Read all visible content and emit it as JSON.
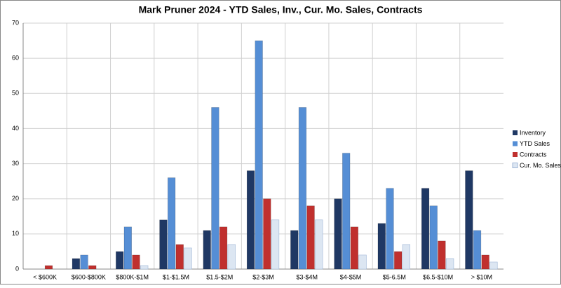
{
  "chart_data": {
    "type": "bar",
    "title": "Mark Pruner 2024 - YTD Sales, Inv., Cur. Mo. Sales, Contracts",
    "categories": [
      "< $600K",
      "$600-$800K",
      "$800K-$1M",
      "$1-$1.5M",
      "$1.5-$2M",
      "$2-$3M",
      "$3-$4M",
      "$4-$5M",
      "$5-6.5M",
      "$6.5-$10M",
      "> $10M"
    ],
    "series": [
      {
        "name": "Inventory",
        "color": "#1f3864",
        "values": [
          0,
          3,
          5,
          14,
          11,
          28,
          11,
          20,
          13,
          23,
          28
        ]
      },
      {
        "name": "YTD Sales",
        "color": "#558ed5",
        "values": [
          0,
          4,
          12,
          26,
          46,
          65,
          46,
          33,
          23,
          18,
          11
        ]
      },
      {
        "name": "Contracts",
        "color": "#c0302e",
        "values": [
          1,
          1,
          4,
          7,
          12,
          20,
          18,
          12,
          5,
          8,
          4
        ]
      },
      {
        "name": "Cur. Mo. Sales",
        "color": "#dce6f2",
        "values": [
          0,
          0,
          1,
          6,
          7,
          14,
          14,
          4,
          7,
          3,
          2
        ]
      }
    ],
    "ylim": [
      0,
      70
    ],
    "yticks": [
      0,
      10,
      20,
      30,
      40,
      50,
      60,
      70
    ],
    "grid": true,
    "legend": "right"
  }
}
